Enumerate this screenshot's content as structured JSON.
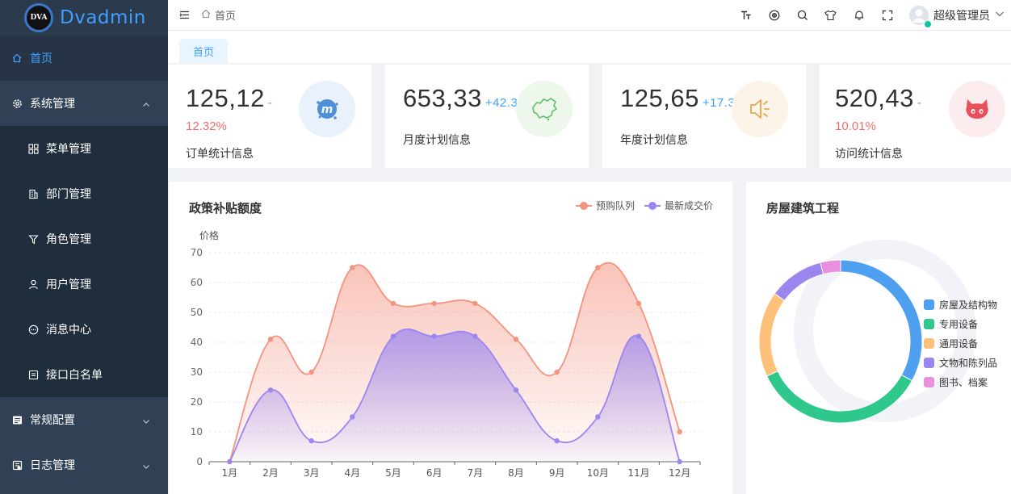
{
  "app": {
    "logo_badge": "DVA",
    "name": "Dvadmin"
  },
  "sidebar": {
    "items": [
      {
        "label": "首页",
        "icon": "home-icon",
        "active": true
      },
      {
        "label": "系统管理",
        "icon": "gear-icon",
        "expanded": true,
        "children": [
          {
            "label": "菜单管理",
            "icon": "grid-icon"
          },
          {
            "label": "部门管理",
            "icon": "building-icon"
          },
          {
            "label": "角色管理",
            "icon": "role-icon"
          },
          {
            "label": "用户管理",
            "icon": "user-icon"
          },
          {
            "label": "消息中心",
            "icon": "message-icon"
          },
          {
            "label": "接口白名单",
            "icon": "whitelist-icon"
          }
        ]
      },
      {
        "label": "常规配置",
        "icon": "config-icon",
        "expanded": false
      },
      {
        "label": "日志管理",
        "icon": "log-icon",
        "expanded": false
      }
    ]
  },
  "navbar": {
    "breadcrumb": "首页",
    "tools": [
      "font-size-icon",
      "sticker-icon",
      "search-icon",
      "theme-icon",
      "bell-icon",
      "fullscreen-icon"
    ],
    "user": "超级管理员"
  },
  "tags": [
    {
      "label": "首页"
    }
  ],
  "stats": [
    {
      "value": "125,12",
      "delta": "-",
      "delta2": "12.32%",
      "label": "订单统计信息",
      "icon": "meetup-icon",
      "icon_bg": "#e8f1fc"
    },
    {
      "value": "653,33",
      "delta": "+42.32",
      "label": "月度计划信息",
      "icon": "china-map-icon",
      "icon_bg": "#eef7ec"
    },
    {
      "value": "125,65",
      "delta": "+17.32",
      "label": "年度计划信息",
      "icon": "speaker-icon",
      "icon_bg": "#fcf4e8"
    },
    {
      "value": "520,43",
      "delta": "-",
      "delta2": "10.01%",
      "label": "访问统计信息",
      "icon": "github-cat-icon",
      "icon_bg": "#fdecee"
    }
  ],
  "chart_data": [
    {
      "type": "area",
      "title": "政策补贴额度",
      "ylabel": "价格",
      "categories": [
        "1月",
        "2月",
        "3月",
        "4月",
        "5月",
        "6月",
        "7月",
        "8月",
        "9月",
        "10月",
        "11月",
        "12月"
      ],
      "ylim": [
        0,
        70
      ],
      "yticks": [
        0,
        10,
        20,
        30,
        40,
        50,
        60,
        70
      ],
      "legend_position": "top-right",
      "series": [
        {
          "name": "预购队列",
          "color": "#f4937f",
          "values": [
            0,
            41,
            30,
            65,
            53,
            53,
            53,
            41,
            30,
            65,
            53,
            10
          ]
        },
        {
          "name": "最新成交价",
          "color": "#9b86f0",
          "values": [
            0,
            24,
            7,
            15,
            42,
            42,
            42,
            24,
            7,
            15,
            42,
            0
          ]
        }
      ]
    },
    {
      "type": "pie",
      "title": "房屋建筑工程",
      "legend_position": "right",
      "slices": [
        {
          "name": "房屋及结构物",
          "color": "#4f9ff0",
          "value": 33
        },
        {
          "name": "专用设备",
          "color": "#2ec88c",
          "value": 35
        },
        {
          "name": "通用设备",
          "color": "#ffc07a",
          "value": 17
        },
        {
          "name": "文物和陈列品",
          "color": "#9b86f0",
          "value": 11
        },
        {
          "name": "图书、档案",
          "color": "#e88fe0",
          "value": 4
        }
      ]
    }
  ]
}
